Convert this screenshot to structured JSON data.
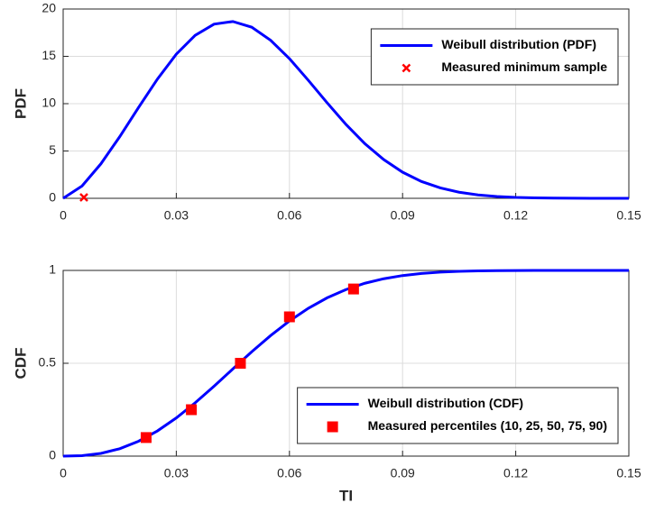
{
  "chart_data": [
    {
      "type": "line",
      "ylabel": "PDF",
      "xlim": [
        0,
        0.15
      ],
      "xticks": [
        0,
        0.03,
        0.06,
        0.09,
        0.12,
        0.15
      ],
      "ylim": [
        0,
        20
      ],
      "yticks": [
        0,
        5,
        10,
        15,
        20
      ],
      "grid": true,
      "legend": "northeast",
      "series": [
        {
          "name": "Weibull distribution (PDF)",
          "color": "#0000ff",
          "mode": "line",
          "x": [
            0,
            0.005,
            0.01,
            0.015,
            0.02,
            0.025,
            0.03,
            0.035,
            0.04,
            0.045,
            0.05,
            0.055,
            0.06,
            0.065,
            0.07,
            0.075,
            0.08,
            0.085,
            0.09,
            0.095,
            0.1,
            0.105,
            0.11,
            0.115,
            0.12,
            0.125,
            0.13,
            0.135,
            0.14,
            0.145,
            0.15
          ],
          "values": [
            0,
            1.3,
            3.64,
            6.51,
            9.6,
            12.6,
            15.23,
            17.22,
            18.4,
            18.68,
            18.08,
            16.7,
            14.76,
            12.47,
            10.09,
            7.8,
            5.77,
            4.09,
            2.76,
            1.78,
            1.1,
            0.645,
            0.361,
            0.193,
            0.0975,
            0.047,
            0.021,
            0.009,
            0.004,
            0.0015,
            0.0005
          ]
        },
        {
          "name": "Measured minimum sample",
          "color": "#ff0000",
          "mode": "marker",
          "marker": "x",
          "x": [
            0.0055
          ],
          "values": [
            0.1
          ]
        }
      ]
    },
    {
      "type": "line",
      "ylabel": "CDF",
      "xlabel": "TI",
      "xlim": [
        0,
        0.15
      ],
      "xticks": [
        0,
        0.03,
        0.06,
        0.09,
        0.12,
        0.15
      ],
      "ylim": [
        0,
        1
      ],
      "yticks": [
        0,
        0.5,
        1
      ],
      "grid": true,
      "legend": "southeast",
      "series": [
        {
          "name": "Weibull distribution (CDF)",
          "color": "#0000ff",
          "mode": "line",
          "x": [
            0,
            0.005,
            0.01,
            0.015,
            0.02,
            0.025,
            0.03,
            0.035,
            0.04,
            0.045,
            0.05,
            0.055,
            0.06,
            0.065,
            0.07,
            0.075,
            0.08,
            0.085,
            0.09,
            0.095,
            0.1,
            0.105,
            0.11,
            0.115,
            0.12,
            0.125,
            0.13,
            0.135,
            0.14,
            0.145,
            0.15
          ],
          "values": [
            0,
            0.0026,
            0.0147,
            0.0399,
            0.0801,
            0.1357,
            0.2055,
            0.287,
            0.3764,
            0.4695,
            0.5618,
            0.649,
            0.7278,
            0.796,
            0.8524,
            0.897,
            0.9309,
            0.9553,
            0.9723,
            0.9835,
            0.9906,
            0.9949,
            0.9973,
            0.9987,
            0.9994,
            0.9997,
            0.9999,
            1,
            1,
            1,
            1
          ]
        },
        {
          "name": "Measured percentiles (10, 25, 50, 75, 90)",
          "color": "#ff0000",
          "mode": "marker",
          "marker": "square",
          "x": [
            0.022,
            0.034,
            0.047,
            0.06,
            0.077
          ],
          "values": [
            0.1,
            0.25,
            0.5,
            0.75,
            0.9
          ]
        }
      ]
    }
  ]
}
